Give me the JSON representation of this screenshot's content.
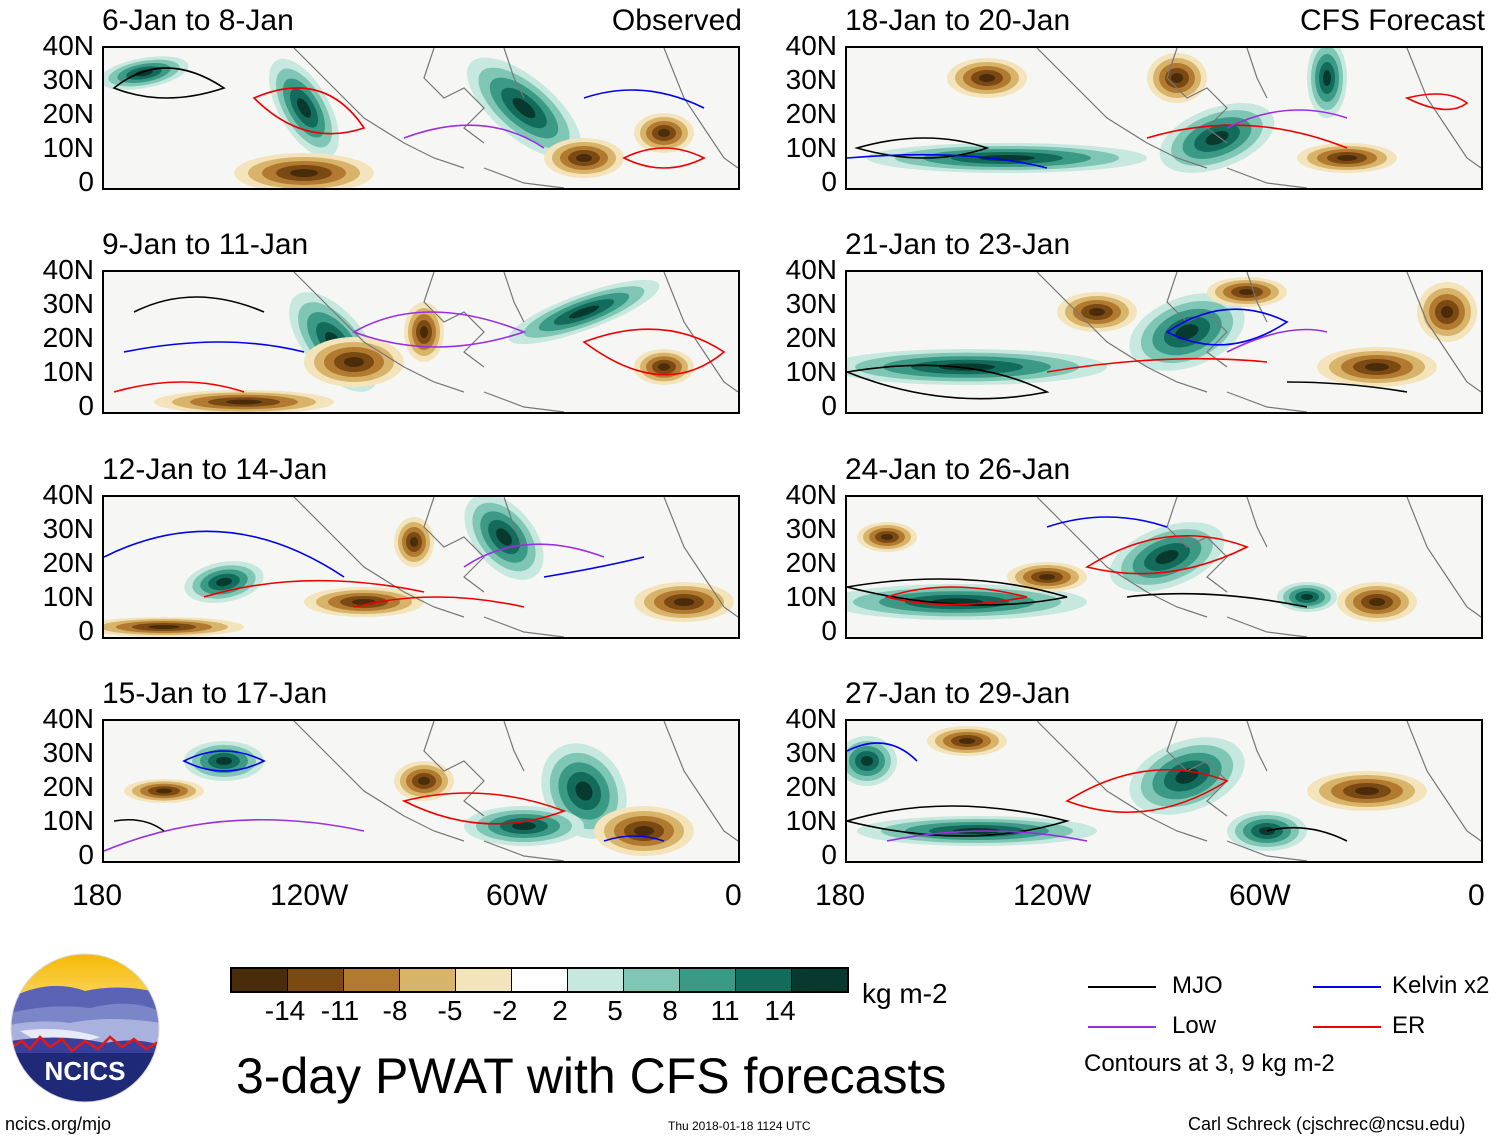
{
  "panel_labels": {
    "observed": "Observed",
    "forecast": "CFS Forecast"
  },
  "panels": [
    {
      "title": "6-Jan to 8-Jan"
    },
    {
      "title": "9-Jan to 11-Jan"
    },
    {
      "title": "12-Jan to 14-Jan"
    },
    {
      "title": "15-Jan to 17-Jan"
    },
    {
      "title": "18-Jan to 20-Jan"
    },
    {
      "title": "21-Jan to 23-Jan"
    },
    {
      "title": "24-Jan to 26-Jan"
    },
    {
      "title": "27-Jan to 29-Jan"
    }
  ],
  "y_axis_labels": [
    "40N",
    "30N",
    "20N",
    "10N",
    "0"
  ],
  "x_axis_labels": [
    "180",
    "120W",
    "60W",
    "0"
  ],
  "colorbar": {
    "ticks": [
      "-14",
      "-11",
      "-8",
      "-5",
      "-2",
      "2",
      "5",
      "8",
      "11",
      "14"
    ],
    "unit": "kg m-2",
    "colors": [
      "#4a2c0a",
      "#7a4a12",
      "#b27a30",
      "#d8b46a",
      "#f3e4bc",
      "#ffffff",
      "#c6e8df",
      "#7fc6b5",
      "#3a9a86",
      "#136b5c",
      "#07392f"
    ]
  },
  "legend": {
    "mjo": {
      "label": "MJO",
      "color": "#000000"
    },
    "kelvin": {
      "label": "Kelvin x2",
      "color": "#0000ee"
    },
    "low": {
      "label": "Low",
      "color": "#9a30e0"
    },
    "er": {
      "label": "ER",
      "color": "#ee0000"
    },
    "contours_note": "Contours at 3, 9 kg m-2"
  },
  "logo_text": "NCICS",
  "main_title": "3-day PWAT with CFS forecasts",
  "footer": {
    "left": "ncics.org/mjo",
    "center": "Thu 2018-01-18 1124 UTC",
    "right": "Carl Schreck (cjschrec@ncsu.edu)"
  }
}
